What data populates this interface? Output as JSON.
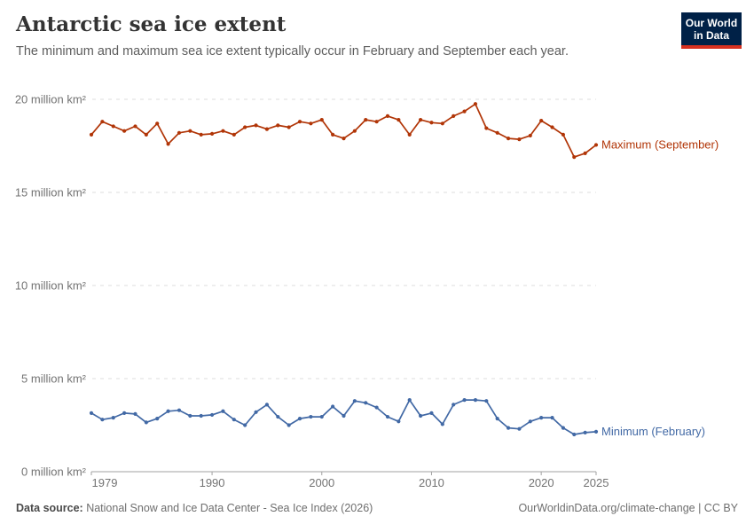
{
  "header": {
    "title": "Antarctic sea ice extent",
    "subtitle": "The minimum and maximum sea ice extent typically occur in February and September each year.",
    "logo": {
      "line1": "Our World",
      "line2": "in Data",
      "bg_color": "#002147",
      "accent_color": "#d7301f"
    }
  },
  "chart_data": {
    "type": "line",
    "title": "Antarctic sea ice extent",
    "x": [
      1979,
      1980,
      1981,
      1982,
      1983,
      1984,
      1985,
      1986,
      1987,
      1988,
      1989,
      1990,
      1991,
      1992,
      1993,
      1994,
      1995,
      1996,
      1997,
      1998,
      1999,
      2000,
      2001,
      2002,
      2003,
      2004,
      2005,
      2006,
      2007,
      2008,
      2009,
      2010,
      2011,
      2012,
      2013,
      2014,
      2015,
      2016,
      2017,
      2018,
      2019,
      2020,
      2021,
      2022,
      2023,
      2024,
      2025
    ],
    "series": [
      {
        "name": "Maximum (September)",
        "color": "#b13507",
        "values": [
          18.1,
          18.8,
          18.55,
          18.3,
          18.55,
          18.1,
          18.7,
          17.6,
          18.2,
          18.3,
          18.1,
          18.15,
          18.3,
          18.1,
          18.5,
          18.6,
          18.4,
          18.6,
          18.5,
          18.8,
          18.7,
          18.9,
          18.1,
          17.9,
          18.3,
          18.9,
          18.8,
          19.1,
          18.9,
          18.1,
          18.9,
          18.75,
          18.7,
          19.1,
          19.35,
          19.75,
          18.45,
          18.2,
          17.9,
          17.85,
          18.05,
          18.85,
          18.5,
          18.1,
          16.9,
          17.1,
          17.55
        ]
      },
      {
        "name": "Minimum (February)",
        "color": "#4269a5",
        "values": [
          3.15,
          2.8,
          2.9,
          3.15,
          3.1,
          2.65,
          2.85,
          3.25,
          3.3,
          3.0,
          3.0,
          3.05,
          3.25,
          2.8,
          2.5,
          3.2,
          3.6,
          2.95,
          2.5,
          2.85,
          2.95,
          2.95,
          3.5,
          3.0,
          3.8,
          3.7,
          3.45,
          2.95,
          2.7,
          3.85,
          3.0,
          3.15,
          2.55,
          3.6,
          3.85,
          3.85,
          3.8,
          2.85,
          2.35,
          2.3,
          2.7,
          2.9,
          2.9,
          2.35,
          2.0,
          2.1,
          2.15
        ]
      }
    ],
    "xlim": [
      1979,
      2025
    ],
    "ylim": [
      0,
      20
    ],
    "x_ticks": [
      1979,
      1990,
      2000,
      2010,
      2020,
      2025
    ],
    "y_ticks": [
      0,
      5,
      10,
      15,
      20
    ],
    "y_tick_suffix": " million km²",
    "grid": "horizontal-dashed",
    "legend_position": "line-end-labels",
    "colors": {
      "grid": "#dcdcdc",
      "axis": "#a1a1a1",
      "tick_label": "#737373"
    }
  },
  "footer": {
    "datasource_label": "Data source:",
    "datasource": " National Snow and Ice Data Center - Sea Ice Index (2026)",
    "credit": "OurWorldinData.org/climate-change | CC BY"
  }
}
